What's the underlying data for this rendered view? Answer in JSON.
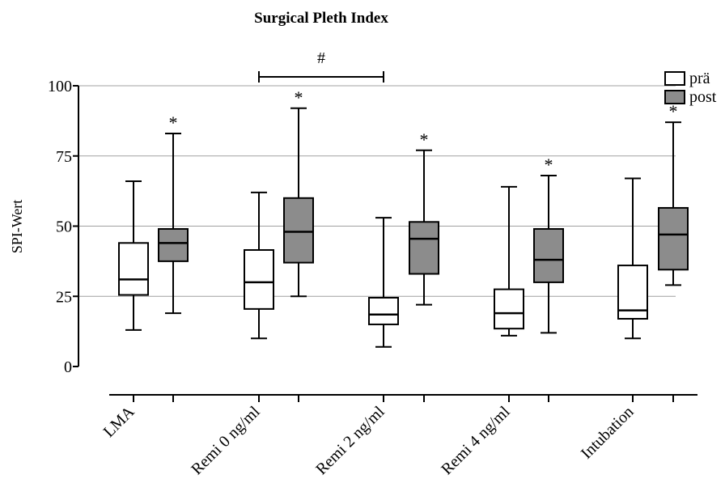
{
  "chart_data": {
    "type": "boxplot",
    "title": "Surgical Pleth Index",
    "ylabel": "SPI-Wert",
    "xlabel": "",
    "ylim": [
      0,
      100
    ],
    "yticks": [
      0,
      25,
      50,
      75,
      100
    ],
    "grid": "horizontal at 25, 50, 75, 100",
    "legend_position": "top-right",
    "categories": [
      "LMA",
      "Remi 0 ng/ml",
      "Remi 2 ng/ml",
      "Remi 4 ng/ml",
      "Intubation"
    ],
    "series": [
      {
        "name": "prä",
        "color": "#ffffff",
        "boxes": [
          {
            "min": 13,
            "q1": 25.5,
            "median": 31,
            "q3": 44,
            "max": 66
          },
          {
            "min": 10,
            "q1": 20.5,
            "median": 30,
            "q3": 41.5,
            "max": 62
          },
          {
            "min": 7,
            "q1": 15,
            "median": 18.5,
            "q3": 24.5,
            "max": 53
          },
          {
            "min": 11,
            "q1": 13.5,
            "median": 19,
            "q3": 27.5,
            "max": 64
          },
          {
            "min": 10,
            "q1": 17,
            "median": 20,
            "q3": 36,
            "max": 67
          }
        ]
      },
      {
        "name": "post",
        "color": "#8c8c8c",
        "boxes": [
          {
            "min": 19,
            "q1": 37.5,
            "median": 44,
            "q3": 49,
            "max": 83
          },
          {
            "min": 25,
            "q1": 37,
            "median": 48,
            "q3": 60,
            "max": 92
          },
          {
            "min": 22,
            "q1": 33,
            "median": 45.5,
            "q3": 51.5,
            "max": 77
          },
          {
            "min": 12,
            "q1": 30,
            "median": 38,
            "q3": 49,
            "max": 68
          },
          {
            "min": 29,
            "q1": 34.5,
            "median": 47,
            "q3": 56.5,
            "max": 87
          }
        ]
      }
    ],
    "annotations": {
      "post_marker": "*",
      "bracket": {
        "label": "#",
        "from": "Remi 0 ng/ml",
        "to": "Remi 2 ng/ml"
      }
    }
  }
}
